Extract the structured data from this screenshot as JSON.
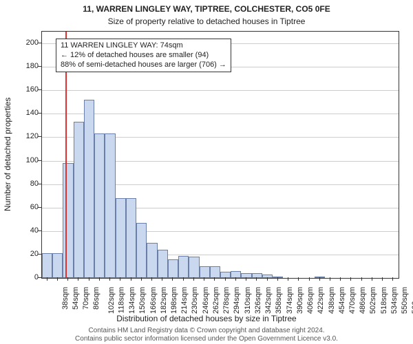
{
  "chart": {
    "type": "histogram",
    "title": "11, WARREN LINGLEY WAY, TIPTREE, COLCHESTER, CO5 0FE",
    "subtitle": "Size of property relative to detached houses in Tiptree",
    "ylabel": "Number of detached properties",
    "xlabel": "Distribution of detached houses by size in Tiptree",
    "title_fontsize": 12,
    "subtitle_fontsize": 12,
    "label_fontsize": 12,
    "tick_fontsize": 11,
    "annotation_fontsize": 11,
    "footer_fontsize": 10,
    "background_color": "#ffffff",
    "border_color": "#333333",
    "grid_color": "#cccccc",
    "bar_fill_color": "#c9d7ef",
    "bar_border_color": "#6a7fa8",
    "ref_line_color": "#e03030",
    "ref_line_width": 2,
    "text_color": "#222222",
    "footer_color": "#555555",
    "x_start": 38,
    "x_step": 16,
    "ylim": [
      0,
      210
    ],
    "ytick_step": 20,
    "ytick_max": 200,
    "x_tick_interval": 1,
    "values": [
      21,
      21,
      98,
      133,
      152,
      123,
      123,
      68,
      68,
      47,
      30,
      24,
      16,
      19,
      18,
      10,
      10,
      5,
      6,
      4,
      4,
      3,
      1,
      0,
      0,
      0,
      1,
      0,
      0,
      0,
      0,
      0,
      0,
      0
    ],
    "ref_x_value": 74,
    "annotation": {
      "line1": "11 WARREN LINGLEY WAY: 74sqm",
      "line2": "← 12% of detached houses are smaller (94)",
      "line3": "88% of semi-detached houses are larger (706) →"
    },
    "footer_line1": "Contains HM Land Registry data © Crown copyright and database right 2024.",
    "footer_line2": "Contains public sector information licensed under the Open Government Licence v3.0."
  }
}
